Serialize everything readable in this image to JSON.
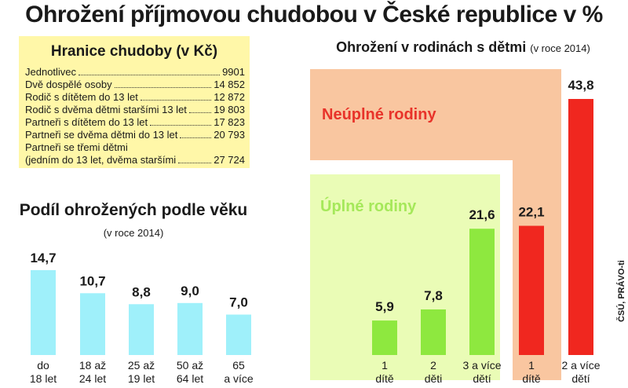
{
  "title": "Ohrožení příjmovou chudobou v České republice v %",
  "threshold": {
    "title": "Hranice chudoby (v Kč)",
    "rows": [
      {
        "label": "Jednotlivec",
        "value": "9901"
      },
      {
        "label": "Dvě dospělé osoby",
        "value": "14 852"
      },
      {
        "label": "Rodič s dítětem do 13 let",
        "value": "12 872"
      },
      {
        "label": "Rodič s dvěma dětmi staršími 13 let",
        "value": "19 803"
      },
      {
        "label": "Partneři s dítětem do 13 let",
        "value": "17 823"
      },
      {
        "label": "Partneři se dvěma dětmi do 13 let",
        "value": "20 793"
      },
      {
        "label": "Partneři se třemi dětmi",
        "value": ""
      },
      {
        "label": "(jedním do 13 let, dvěma staršími",
        "value": "27 724"
      }
    ]
  },
  "chart_data": [
    {
      "type": "bar",
      "title": "Podíl ohrožených podle věku",
      "subtitle": "(v roce 2014)",
      "categories": [
        [
          "do",
          "18 let"
        ],
        [
          "18 až",
          "24 let"
        ],
        [
          "25 až",
          "19 let"
        ],
        [
          "50 až",
          "64 let"
        ],
        [
          "65",
          "a více"
        ]
      ],
      "values": [
        14.7,
        10.7,
        8.8,
        9.0,
        7.0
      ],
      "value_labels": [
        "14,7",
        "10,7",
        "8,8",
        "9,0",
        "7,0"
      ],
      "color": "#9ff0fa",
      "ylim": [
        0,
        15
      ]
    },
    {
      "type": "bar",
      "title": "Ohrožení v rodinách s dětmi",
      "subtitle": "(v roce 2014)",
      "ylim": [
        0,
        45
      ],
      "series": [
        {
          "name": "Úplné rodiny",
          "color": "#8ee83f",
          "background": "#eafcb6",
          "label_color": "#a5e85a",
          "categories": [
            [
              "1",
              "dítě"
            ],
            [
              "2",
              "děti"
            ],
            [
              "3 a více",
              "dětí"
            ]
          ],
          "values": [
            5.9,
            7.8,
            21.6
          ],
          "value_labels": [
            "5,9",
            "7,8",
            "21,6"
          ]
        },
        {
          "name": "Neúplné rodiny",
          "color": "#f0271f",
          "background": "#f9c6a0",
          "label_color": "#e8332a",
          "categories": [
            [
              "1",
              "dítě"
            ],
            [
              "2 a více",
              "dětí"
            ]
          ],
          "values": [
            22.1,
            43.8
          ],
          "value_labels": [
            "22,1",
            "43,8"
          ]
        }
      ]
    }
  ],
  "source": "ČSÚ, PRÁVO-ti"
}
